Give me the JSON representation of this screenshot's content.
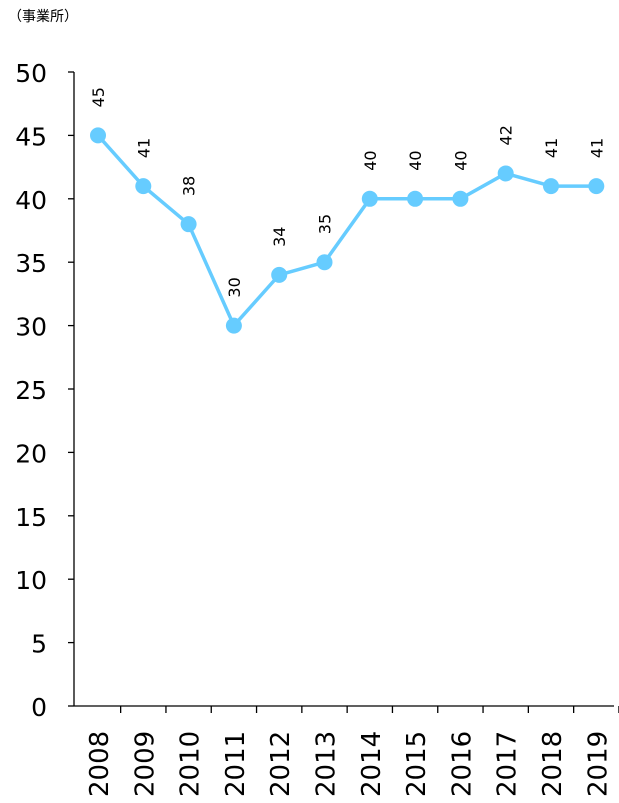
{
  "unit_label": "（事業所）",
  "colors": {
    "series": "#66CCFF",
    "axis": "#000000"
  },
  "chart_data": {
    "type": "line",
    "title": "",
    "xlabel": "",
    "ylabel": "",
    "x": [
      "2008",
      "2009",
      "2010",
      "2011",
      "2012",
      "2013",
      "2014",
      "2015",
      "2016",
      "2017",
      "2018",
      "2019"
    ],
    "series": [
      {
        "values": [
          45,
          41,
          38,
          30,
          34,
          35,
          40,
          40,
          40,
          42,
          41,
          41
        ]
      }
    ],
    "ylim": [
      0,
      50
    ],
    "yticks": [
      0,
      5,
      10,
      15,
      20,
      25,
      30,
      35,
      40,
      45,
      50
    ],
    "grid": false,
    "data_labels": true,
    "legend": "none",
    "markers": "circle"
  }
}
